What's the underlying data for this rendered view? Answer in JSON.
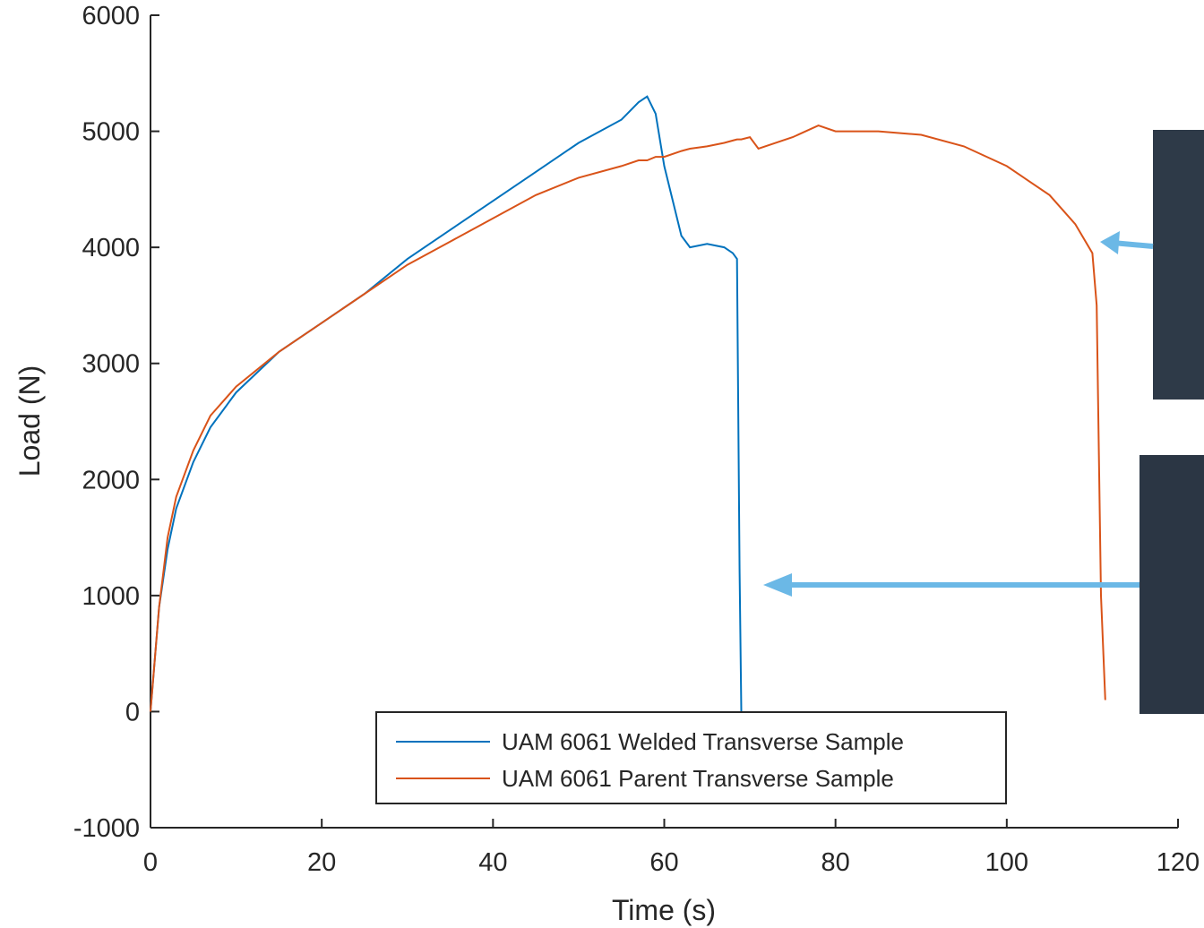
{
  "chart_data": {
    "type": "line",
    "xlabel": "Time (s)",
    "ylabel": "Load (N)",
    "x": [
      0,
      1,
      2,
      3,
      5,
      7,
      10,
      15,
      20,
      25,
      30,
      35,
      40,
      45,
      50,
      55,
      57,
      58,
      59,
      60,
      62,
      63,
      65,
      67,
      68,
      68.5,
      68.8,
      69,
      70,
      71,
      75,
      78,
      80,
      85,
      90,
      95,
      100,
      105,
      108,
      110,
      110.5,
      111,
      111.5
    ],
    "series": [
      {
        "name": "UAM 6061 Welded Transverse Sample",
        "color": "#0072bd",
        "values": [
          0,
          900,
          1400,
          1750,
          2150,
          2450,
          2750,
          3100,
          3350,
          3600,
          3900,
          4150,
          4400,
          4650,
          4900,
          5100,
          5250,
          5300,
          5150,
          4700,
          4100,
          4000,
          4030,
          4000,
          3950,
          3900,
          1200,
          0,
          null,
          null,
          null,
          null,
          null,
          null,
          null,
          null,
          null,
          null,
          null,
          null,
          null,
          null,
          null
        ]
      },
      {
        "name": "UAM 6061 Parent Transverse Sample",
        "color": "#d95319",
        "values": [
          0,
          900,
          1500,
          1850,
          2250,
          2550,
          2800,
          3100,
          3350,
          3600,
          3850,
          4050,
          4250,
          4450,
          4600,
          4700,
          4750,
          4750,
          4780,
          4780,
          4830,
          4850,
          4870,
          4900,
          4920,
          4930,
          4930,
          4930,
          4950,
          4850,
          4950,
          5050,
          5000,
          5000,
          4970,
          4870,
          4700,
          4450,
          4200,
          3950,
          3500,
          1000,
          100
        ]
      }
    ],
    "xlim": [
      0,
      120
    ],
    "ylim": [
      -1000,
      6000
    ],
    "xticks": [
      0,
      20,
      40,
      60,
      80,
      100,
      120
    ],
    "yticks": [
      -1000,
      0,
      1000,
      2000,
      3000,
      4000,
      5000,
      6000
    ],
    "grid": false,
    "legend": "lower center"
  }
}
